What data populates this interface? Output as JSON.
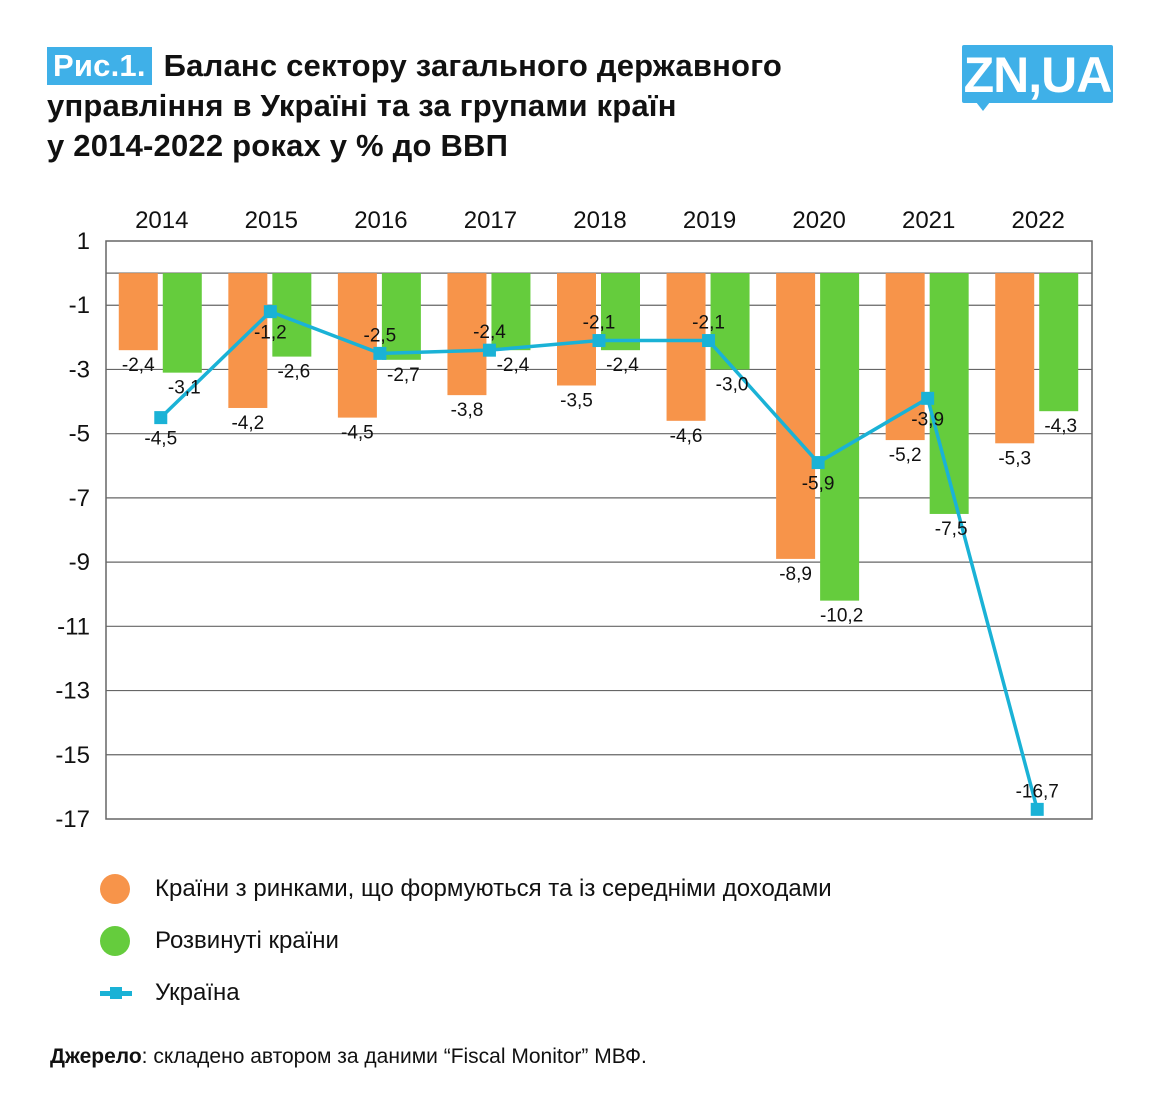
{
  "header": {
    "figure_tag": "Рис.1.",
    "title_lines": [
      "Баланс сектору загального державного",
      "управління в Україні та за групами країн",
      "у 2014-2022 роках у % до ВВП"
    ],
    "logo_text": "ZN,UA"
  },
  "colors": {
    "emerging": "#f7944a",
    "advanced": "#65cc3d",
    "ukraine": "#1ab2d6",
    "accent": "#3fb0e8",
    "grid": "#666666"
  },
  "chart_data": {
    "type": "bar",
    "title": "Баланс сектору загального державного управління в Україні та за групами країн у 2014-2022 роках у % до ВВП",
    "xlabel": "",
    "ylabel": "",
    "categories": [
      "2014",
      "2015",
      "2016",
      "2017",
      "2018",
      "2019",
      "2020",
      "2021",
      "2022"
    ],
    "category_axis_position": "top",
    "ylim": [
      -17,
      1
    ],
    "yticks": [
      1,
      -1,
      -3,
      -5,
      -7,
      -9,
      -11,
      -13,
      -15,
      -17
    ],
    "ytick_labels": [
      "1",
      "-1",
      "-3",
      "-5",
      "-7",
      "-9",
      "-11",
      "-13",
      "-15",
      "-17"
    ],
    "grid": true,
    "series": [
      {
        "name": "Країни з ринками, що формуються та із середніми доходами",
        "type": "bar",
        "color": "#f7944a",
        "values": [
          -2.4,
          -4.2,
          -4.5,
          -3.8,
          -3.5,
          -4.6,
          -8.9,
          -5.2,
          -5.3
        ],
        "labels": [
          "-2,4",
          "-4,2",
          "-4,5",
          "-3,8",
          "-3,5",
          "-4,6",
          "-8,9",
          "-5,2",
          "-5,3"
        ]
      },
      {
        "name": "Розвинуті країни",
        "type": "bar",
        "color": "#65cc3d",
        "values": [
          -3.1,
          -2.6,
          -2.7,
          -2.4,
          -2.4,
          -3.0,
          -10.2,
          -7.5,
          -4.3
        ],
        "labels": [
          "-3,1",
          "-2,6",
          "-2,7",
          "-2,4",
          "-2,4",
          "-3,0",
          "-10,2",
          "-7,5",
          "-4,3"
        ]
      },
      {
        "name": "Україна",
        "type": "line",
        "marker": "square",
        "color": "#1ab2d6",
        "values": [
          -4.5,
          -1.2,
          -2.5,
          -2.4,
          -2.1,
          -2.1,
          -5.9,
          -3.9,
          -16.7
        ],
        "labels": [
          "-4,5",
          "-1,2",
          "-2,5",
          "-2,4",
          "-2,1",
          "-2,1",
          "-5,9",
          "-3,9",
          "-16,7"
        ]
      }
    ],
    "legend_position": "bottom-left"
  },
  "legend": {
    "items": [
      {
        "label": "Країни з ринками, що формуються та із середніми доходами",
        "marker": "circle-orange"
      },
      {
        "label": "Розвинуті країни",
        "marker": "circle-green"
      },
      {
        "label": "Україна",
        "marker": "line-square-cyan"
      }
    ]
  },
  "source": {
    "label": "Джерело",
    "text": ": складено автором за даними “Fiscal Monitor” МВФ."
  }
}
